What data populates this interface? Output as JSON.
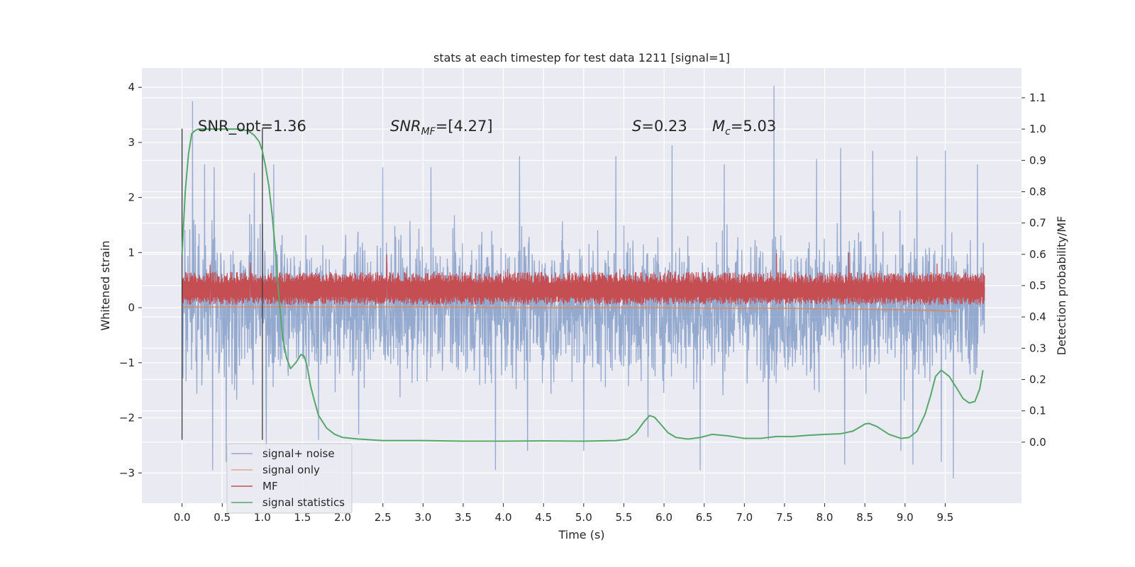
{
  "chart_data": {
    "type": "line",
    "title": "stats at each timestep for test data 1211 [signal=1]",
    "xlabel": "Time (s)",
    "ylabel_left": "Whitened strain",
    "ylabel_right": "Detection probability/MF",
    "xlim": [
      -0.5,
      10.45
    ],
    "ylim_left": [
      -3.55,
      4.35
    ],
    "ylim_right": [
      -0.195,
      1.195
    ],
    "x_ticks": [
      0.0,
      0.5,
      1.0,
      1.5,
      2.0,
      2.5,
      3.0,
      3.5,
      4.0,
      4.5,
      5.0,
      5.5,
      6.0,
      6.5,
      7.0,
      7.5,
      8.0,
      8.5,
      9.0,
      9.5
    ],
    "x_tick_labels": [
      "0.0",
      "0.5",
      "1.0",
      "1.5",
      "2.0",
      "2.5",
      "3.0",
      "3.5",
      "4.0",
      "4.5",
      "5.0",
      "5.5",
      "6.0",
      "6.5",
      "7.0",
      "7.5",
      "8.0",
      "8.5",
      "9.0",
      "9.5"
    ],
    "y_ticks_left": [
      -3,
      -2,
      -1,
      0,
      1,
      2,
      3,
      4
    ],
    "y_tick_labels_left": [
      "−3",
      "−2",
      "−1",
      "0",
      "1",
      "2",
      "3",
      "4"
    ],
    "y_ticks_right": [
      0.0,
      0.1,
      0.2,
      0.3,
      0.4,
      0.5,
      0.6,
      0.7,
      0.8,
      0.9,
      1.0,
      1.1
    ],
    "y_tick_labels_right": [
      "0.0",
      "0.1",
      "0.2",
      "0.3",
      "0.4",
      "0.5",
      "0.6",
      "0.7",
      "0.8",
      "0.9",
      "1.0",
      "1.1"
    ],
    "grid": true,
    "legend_position": "lower-left",
    "annotations": {
      "snr_opt": "SNR_opt=1.36",
      "snr_mf_main": "SNR",
      "snr_mf_sub": "MF",
      "snr_mf_value": "=[4.27]",
      "s_main": "S",
      "s_value": "=0.23",
      "mc_main": "M",
      "mc_sub": "c",
      "mc_value": "=5.03"
    },
    "vertical_markers": [
      {
        "x": 0.0,
        "y_range": [
          -2.4,
          3.25
        ]
      },
      {
        "x": 1.0,
        "y_range": [
          -2.4,
          3.25
        ]
      }
    ],
    "series": [
      {
        "name": "signal+ noise",
        "axis": "left",
        "color": "#4c72b0",
        "x_range": [
          0.0,
          9.99
        ],
        "envelope_typical": [
          -1.6,
          1.6
        ],
        "peak_max": 4.03,
        "peak_min": -3.1,
        "spikes": [
          {
            "x": 0.13,
            "y": 3.75
          },
          {
            "x": 0.28,
            "y": 2.6
          },
          {
            "x": 0.4,
            "y": 2.55
          },
          {
            "x": 0.55,
            "y": 2.55
          },
          {
            "x": 0.9,
            "y": 2.45
          },
          {
            "x": 1.14,
            "y": 2.6
          },
          {
            "x": 2.5,
            "y": 2.55
          },
          {
            "x": 3.1,
            "y": 2.55
          },
          {
            "x": 4.2,
            "y": 2.75
          },
          {
            "x": 5.4,
            "y": 2.75
          },
          {
            "x": 6.1,
            "y": 2.95
          },
          {
            "x": 6.75,
            "y": 2.6
          },
          {
            "x": 7.37,
            "y": 4.03
          },
          {
            "x": 7.9,
            "y": 2.7
          },
          {
            "x": 8.2,
            "y": 2.9
          },
          {
            "x": 8.6,
            "y": 2.85
          },
          {
            "x": 9.15,
            "y": 2.75
          },
          {
            "x": 9.5,
            "y": 2.85
          },
          {
            "x": 9.9,
            "y": 2.6
          },
          {
            "x": 0.38,
            "y": -2.95
          },
          {
            "x": 0.55,
            "y": -2.8
          },
          {
            "x": 1.05,
            "y": -2.6
          },
          {
            "x": 1.7,
            "y": -2.4
          },
          {
            "x": 2.2,
            "y": -2.3
          },
          {
            "x": 3.9,
            "y": -2.95
          },
          {
            "x": 4.3,
            "y": -2.6
          },
          {
            "x": 5.0,
            "y": -2.6
          },
          {
            "x": 5.8,
            "y": -2.35
          },
          {
            "x": 6.45,
            "y": -2.95
          },
          {
            "x": 7.3,
            "y": -2.4
          },
          {
            "x": 8.25,
            "y": -2.85
          },
          {
            "x": 8.95,
            "y": -2.6
          },
          {
            "x": 9.1,
            "y": -2.85
          },
          {
            "x": 9.45,
            "y": -2.8
          },
          {
            "x": 9.6,
            "y": -3.1
          }
        ]
      },
      {
        "name": "signal only",
        "axis": "left",
        "color": "#dd8452",
        "x": [
          0.0,
          1.0,
          2.0,
          3.0,
          4.0,
          5.0,
          6.0,
          6.5,
          7.0,
          7.5,
          8.0,
          8.5,
          9.0,
          9.3,
          9.5,
          9.65
        ],
        "y": [
          0.01,
          0.01,
          0.01,
          0.01,
          0.0,
          0.0,
          0.0,
          -0.01,
          -0.01,
          -0.01,
          -0.02,
          -0.03,
          -0.04,
          -0.05,
          -0.06,
          -0.07
        ]
      },
      {
        "name": "MF",
        "axis": "left",
        "color": "#c44e52",
        "x_range": [
          0.0,
          9.99
        ],
        "envelope_typical": [
          0.05,
          0.6
        ],
        "spikes": [
          {
            "x": 0.35,
            "y": 0.78
          },
          {
            "x": 0.85,
            "y": 0.82
          },
          {
            "x": 2.55,
            "y": 0.97
          },
          {
            "x": 4.05,
            "y": 0.7
          },
          {
            "x": 5.45,
            "y": 0.7
          },
          {
            "x": 6.05,
            "y": 0.68
          },
          {
            "x": 7.4,
            "y": 0.98
          },
          {
            "x": 8.3,
            "y": 1.0
          },
          {
            "x": 9.4,
            "y": 0.8
          }
        ]
      },
      {
        "name": "signal statistics",
        "axis": "right",
        "color": "#55a868",
        "x": [
          0.0,
          0.04,
          0.08,
          0.12,
          0.16,
          0.2,
          0.3,
          0.5,
          0.7,
          0.82,
          0.9,
          0.96,
          1.0,
          1.04,
          1.08,
          1.12,
          1.16,
          1.2,
          1.25,
          1.3,
          1.35,
          1.42,
          1.48,
          1.52,
          1.56,
          1.6,
          1.65,
          1.7,
          1.8,
          1.9,
          2.0,
          2.2,
          2.5,
          3.0,
          3.5,
          4.0,
          4.5,
          5.0,
          5.4,
          5.55,
          5.65,
          5.75,
          5.82,
          5.88,
          5.95,
          6.05,
          6.15,
          6.3,
          6.45,
          6.6,
          6.8,
          7.0,
          7.2,
          7.4,
          7.6,
          7.8,
          8.0,
          8.2,
          8.35,
          8.45,
          8.5,
          8.55,
          8.65,
          8.8,
          8.95,
          9.05,
          9.15,
          9.25,
          9.32,
          9.38,
          9.45,
          9.55,
          9.65,
          9.72,
          9.8,
          9.87,
          9.93,
          9.97
        ],
        "y": [
          0.6,
          0.8,
          0.92,
          0.985,
          0.995,
          1.0,
          1.0,
          1.0,
          1.0,
          0.995,
          0.98,
          0.96,
          0.93,
          0.88,
          0.82,
          0.73,
          0.62,
          0.48,
          0.34,
          0.27,
          0.235,
          0.255,
          0.28,
          0.275,
          0.24,
          0.18,
          0.13,
          0.085,
          0.045,
          0.025,
          0.015,
          0.01,
          0.005,
          0.005,
          0.003,
          0.003,
          0.004,
          0.003,
          0.005,
          0.01,
          0.03,
          0.065,
          0.085,
          0.08,
          0.06,
          0.03,
          0.015,
          0.01,
          0.015,
          0.025,
          0.02,
          0.012,
          0.012,
          0.018,
          0.018,
          0.022,
          0.025,
          0.027,
          0.035,
          0.05,
          0.058,
          0.06,
          0.05,
          0.025,
          0.012,
          0.015,
          0.035,
          0.09,
          0.15,
          0.21,
          0.23,
          0.21,
          0.17,
          0.14,
          0.125,
          0.13,
          0.17,
          0.23
        ]
      }
    ]
  }
}
